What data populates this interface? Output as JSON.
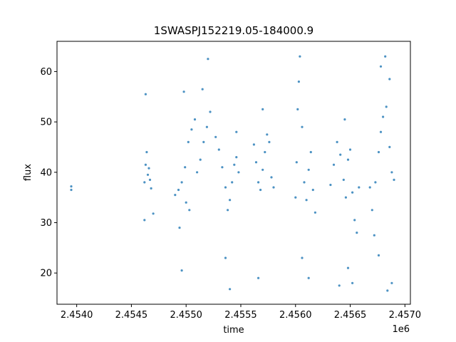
{
  "chart_data": {
    "type": "scatter",
    "title": "1SWASPJ152219.05-184000.9",
    "xlabel": "time",
    "ylabel": "flux",
    "x_offset_label": "1e6",
    "xlim": [
      2.45382,
      2.45705
    ],
    "ylim": [
      13.8,
      66.0
    ],
    "x_ticks": [
      2.454,
      2.4545,
      2.455,
      2.4555,
      2.456,
      2.4565,
      2.457
    ],
    "x_tick_labels": [
      "2.4540",
      "2.4545",
      "2.4550",
      "2.4555",
      "2.4560",
      "2.4565",
      "2.4570"
    ],
    "y_ticks": [
      20,
      30,
      40,
      50,
      60
    ],
    "y_tick_labels": [
      "20",
      "30",
      "40",
      "50",
      "60"
    ],
    "grid": false,
    "marker_color": "#1f77b4",
    "series": [
      {
        "points": [
          [
            2.45395,
            36.5
          ],
          [
            2.45395,
            37.2
          ],
          [
            2.45462,
            38.0
          ],
          [
            2.45463,
            41.5
          ],
          [
            2.45464,
            44.0
          ],
          [
            2.45465,
            39.5
          ],
          [
            2.45466,
            40.8
          ],
          [
            2.45467,
            38.5
          ],
          [
            2.45468,
            36.8
          ],
          [
            2.4547,
            31.8
          ],
          [
            2.45463,
            55.5
          ],
          [
            2.45462,
            30.5
          ],
          [
            2.4549,
            35.5
          ],
          [
            2.45493,
            36.5
          ],
          [
            2.45496,
            38.0
          ],
          [
            2.45499,
            41.0
          ],
          [
            2.45502,
            46.0
          ],
          [
            2.45505,
            48.5
          ],
          [
            2.45508,
            50.5
          ],
          [
            2.455,
            34.0
          ],
          [
            2.45503,
            32.5
          ],
          [
            2.45498,
            56.0
          ],
          [
            2.45496,
            20.5
          ],
          [
            2.45494,
            29.0
          ],
          [
            2.4551,
            40.0
          ],
          [
            2.45513,
            42.5
          ],
          [
            2.45516,
            46.0
          ],
          [
            2.45519,
            49.0
          ],
          [
            2.45522,
            52.0
          ],
          [
            2.45515,
            56.5
          ],
          [
            2.4552,
            62.5
          ],
          [
            2.45527,
            47.0
          ],
          [
            2.4553,
            44.5
          ],
          [
            2.45533,
            41.0
          ],
          [
            2.45536,
            37.0
          ],
          [
            2.45538,
            32.5
          ],
          [
            2.4554,
            34.5
          ],
          [
            2.45542,
            38.0
          ],
          [
            2.45544,
            41.5
          ],
          [
            2.45546,
            43.0
          ],
          [
            2.45548,
            40.0
          ],
          [
            2.4554,
            16.8
          ],
          [
            2.45536,
            23.0
          ],
          [
            2.45546,
            48.0
          ],
          [
            2.45562,
            45.5
          ],
          [
            2.45564,
            42.0
          ],
          [
            2.45566,
            38.0
          ],
          [
            2.45568,
            36.5
          ],
          [
            2.4557,
            40.5
          ],
          [
            2.45572,
            44.0
          ],
          [
            2.45574,
            47.5
          ],
          [
            2.45576,
            46.0
          ],
          [
            2.45578,
            39.0
          ],
          [
            2.4558,
            37.0
          ],
          [
            2.4557,
            52.5
          ],
          [
            2.45566,
            19.0
          ],
          [
            2.456,
            35.0
          ],
          [
            2.45601,
            42.0
          ],
          [
            2.45602,
            52.5
          ],
          [
            2.45603,
            58.0
          ],
          [
            2.45604,
            63.0
          ],
          [
            2.45606,
            49.0
          ],
          [
            2.45608,
            38.0
          ],
          [
            2.4561,
            34.5
          ],
          [
            2.45612,
            40.5
          ],
          [
            2.45614,
            44.0
          ],
          [
            2.45616,
            36.5
          ],
          [
            2.45618,
            32.0
          ],
          [
            2.45606,
            23.0
          ],
          [
            2.45612,
            19.0
          ],
          [
            2.45632,
            37.5
          ],
          [
            2.45635,
            41.5
          ],
          [
            2.45638,
            46.0
          ],
          [
            2.45641,
            43.5
          ],
          [
            2.45644,
            38.5
          ],
          [
            2.45646,
            35.0
          ],
          [
            2.45648,
            42.5
          ],
          [
            2.4565,
            44.5
          ],
          [
            2.45652,
            36.0
          ],
          [
            2.45654,
            30.5
          ],
          [
            2.45656,
            28.0
          ],
          [
            2.45658,
            37.0
          ],
          [
            2.4564,
            17.5
          ],
          [
            2.45645,
            50.5
          ],
          [
            2.45648,
            21.0
          ],
          [
            2.45652,
            18.0
          ],
          [
            2.45668,
            37.0
          ],
          [
            2.4567,
            32.5
          ],
          [
            2.45673,
            38.0
          ],
          [
            2.45676,
            44.0
          ],
          [
            2.45678,
            48.0
          ],
          [
            2.4568,
            51.0
          ],
          [
            2.45683,
            53.0
          ],
          [
            2.45686,
            45.0
          ],
          [
            2.45688,
            40.0
          ],
          [
            2.4569,
            38.5
          ],
          [
            2.45678,
            61.0
          ],
          [
            2.45682,
            63.0
          ],
          [
            2.45684,
            16.5
          ],
          [
            2.45676,
            23.5
          ],
          [
            2.45688,
            18.0
          ],
          [
            2.45686,
            58.5
          ],
          [
            2.45672,
            27.5
          ]
        ]
      }
    ]
  }
}
